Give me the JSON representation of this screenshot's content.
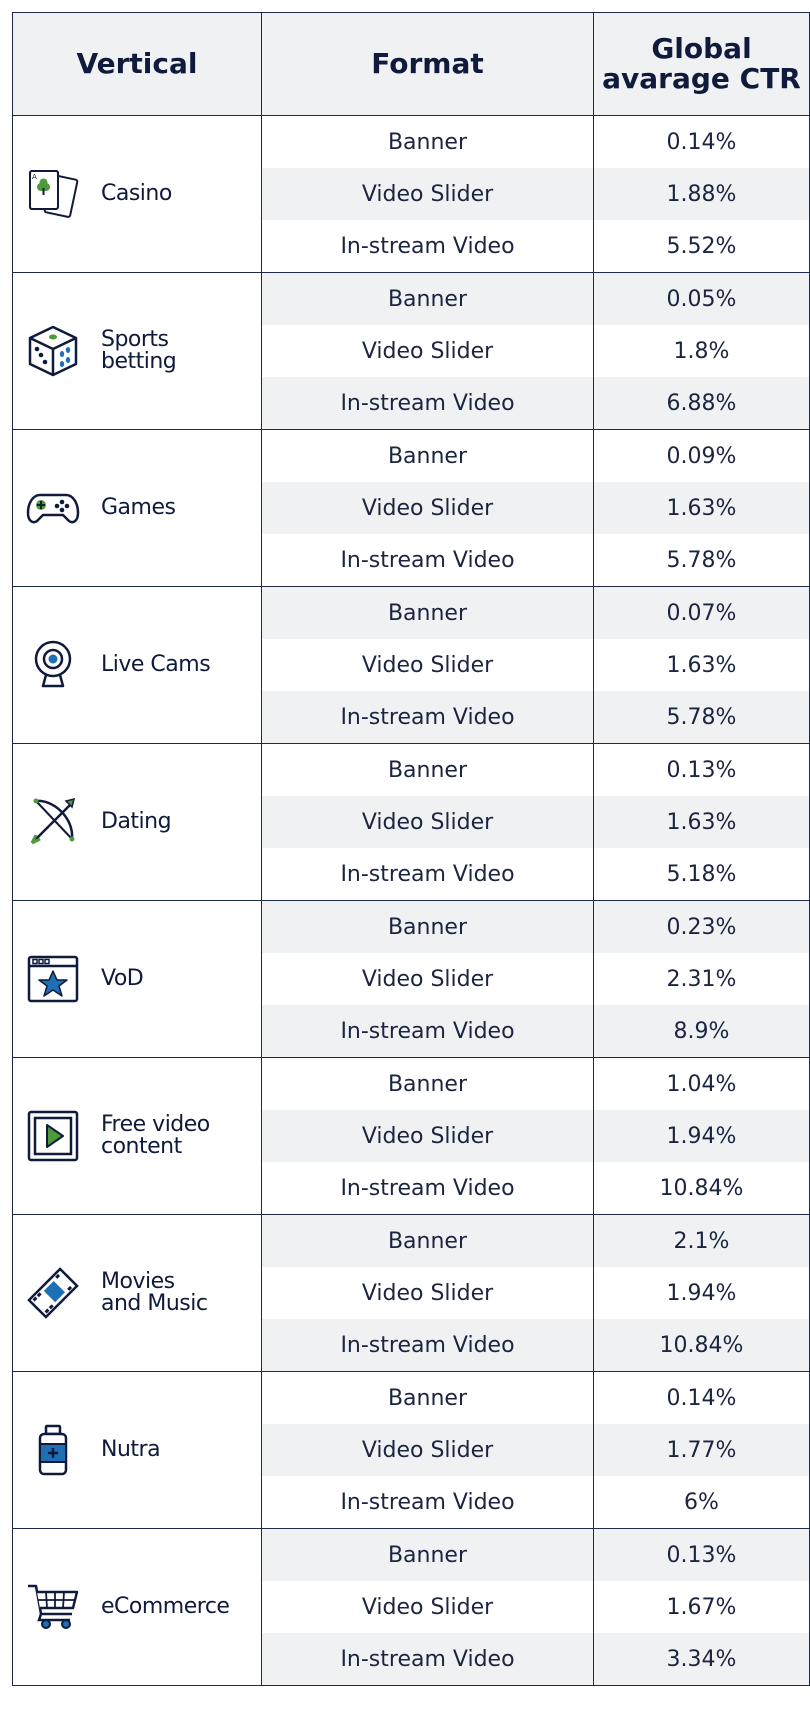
{
  "header": {
    "vertical": "Vertical",
    "format": "Format",
    "ctr_line1": "Global",
    "ctr_line2": "avarage CTR"
  },
  "colors": {
    "border": "#1e2a4a",
    "shade": "#f0f1f2",
    "accent_green": "#4f9a3a",
    "accent_blue": "#1f6fb5",
    "text": "#0f1a3c"
  },
  "verticals": [
    {
      "name": "Casino",
      "icon": "casino-cards-icon",
      "rows": [
        {
          "format": "Banner",
          "ctr": "0.14%"
        },
        {
          "format": "Video Slider",
          "ctr": "1.88%"
        },
        {
          "format": "In-stream Video",
          "ctr": "5.52%"
        }
      ]
    },
    {
      "name": "Sports\nbetting",
      "icon": "dice-icon",
      "rows": [
        {
          "format": "Banner",
          "ctr": "0.05%"
        },
        {
          "format": "Video Slider",
          "ctr": "1.8%"
        },
        {
          "format": "In-stream Video",
          "ctr": "6.88%"
        }
      ]
    },
    {
      "name": "Games",
      "icon": "gamepad-icon",
      "rows": [
        {
          "format": "Banner",
          "ctr": "0.09%"
        },
        {
          "format": "Video Slider",
          "ctr": "1.63%"
        },
        {
          "format": "In-stream Video",
          "ctr": "5.78%"
        }
      ]
    },
    {
      "name": "Live Cams",
      "icon": "webcam-icon",
      "rows": [
        {
          "format": "Banner",
          "ctr": "0.07%"
        },
        {
          "format": "Video Slider",
          "ctr": "1.63%"
        },
        {
          "format": "In-stream Video",
          "ctr": "5.78%"
        }
      ]
    },
    {
      "name": "Dating",
      "icon": "bow-arrow-icon",
      "rows": [
        {
          "format": "Banner",
          "ctr": "0.13%"
        },
        {
          "format": "Video Slider",
          "ctr": "1.63%"
        },
        {
          "format": "In-stream Video",
          "ctr": "5.18%"
        }
      ]
    },
    {
      "name": "VoD",
      "icon": "star-window-icon",
      "rows": [
        {
          "format": "Banner",
          "ctr": "0.23%"
        },
        {
          "format": "Video Slider",
          "ctr": "2.31%"
        },
        {
          "format": "In-stream Video",
          "ctr": "8.9%"
        }
      ]
    },
    {
      "name": "Free video\ncontent",
      "icon": "play-button-icon",
      "rows": [
        {
          "format": "Banner",
          "ctr": "1.04%"
        },
        {
          "format": "Video Slider",
          "ctr": "1.94%"
        },
        {
          "format": "In-stream Video",
          "ctr": "10.84%"
        }
      ]
    },
    {
      "name": "Movies\nand Music",
      "icon": "film-strip-icon",
      "rows": [
        {
          "format": "Banner",
          "ctr": "2.1%"
        },
        {
          "format": "Video Slider",
          "ctr": "1.94%"
        },
        {
          "format": "In-stream Video",
          "ctr": "10.84%"
        }
      ]
    },
    {
      "name": "Nutra",
      "icon": "medicine-bottle-icon",
      "rows": [
        {
          "format": "Banner",
          "ctr": "0.14%"
        },
        {
          "format": "Video Slider",
          "ctr": "1.77%"
        },
        {
          "format": "In-stream Video",
          "ctr": "6%"
        }
      ]
    },
    {
      "name": "eCommerce",
      "icon": "shopping-cart-icon",
      "rows": [
        {
          "format": "Banner",
          "ctr": "0.13%"
        },
        {
          "format": "Video Slider",
          "ctr": "1.67%"
        },
        {
          "format": "In-stream Video",
          "ctr": "3.34%"
        }
      ]
    }
  ]
}
